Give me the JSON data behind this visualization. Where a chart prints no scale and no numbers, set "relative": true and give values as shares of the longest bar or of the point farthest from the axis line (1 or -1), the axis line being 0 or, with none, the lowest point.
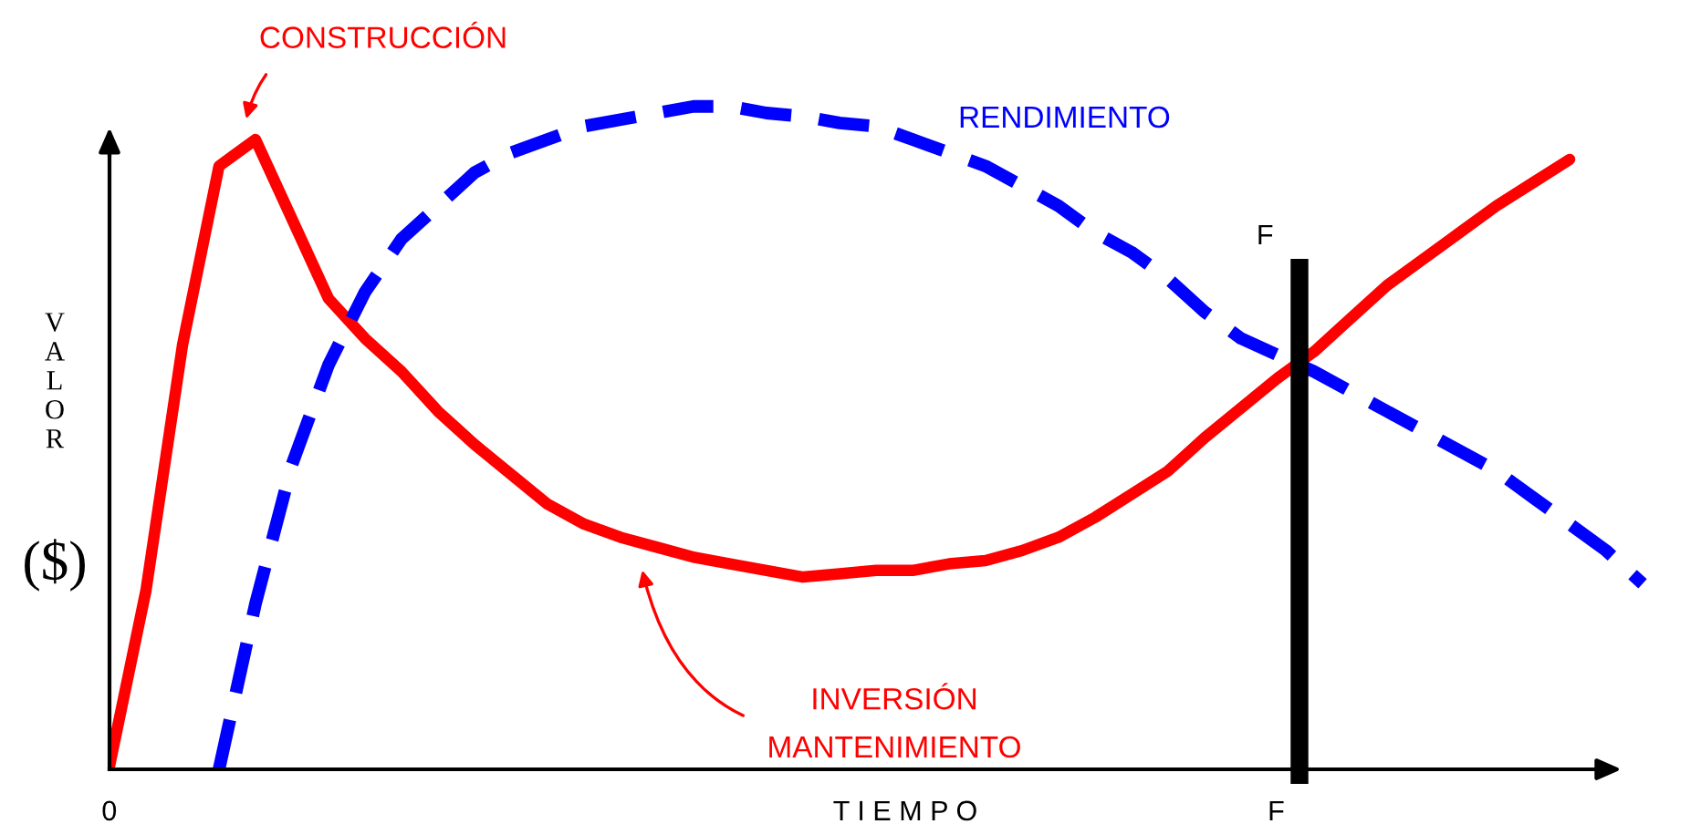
{
  "chart_data": {
    "type": "line",
    "relative": true,
    "xlabel": "T I E M P O",
    "ylabel": "VALOR ($)",
    "categories": [
      null,
      null,
      null,
      null,
      null,
      null,
      null,
      null,
      null,
      null,
      null,
      null,
      null,
      null,
      null,
      null,
      null,
      null,
      null,
      null,
      null,
      null,
      null,
      null,
      null,
      null,
      null,
      null,
      null,
      null,
      null,
      null,
      null,
      null,
      null,
      null,
      null,
      null,
      null,
      null,
      null,
      null,
      null
    ],
    "series": [
      {
        "color": "#ff0000",
        "line_style": "solid",
        "values": [
          0.005,
          0.27,
          0.64,
          0.91,
          0.95,
          0.83,
          0.71,
          0.65,
          0.6,
          0.54,
          0.49,
          0.445,
          0.4,
          0.37,
          0.35,
          0.335,
          0.32,
          0.31,
          0.3,
          0.29,
          0.295,
          0.3,
          0.3,
          0.31,
          0.315,
          0.33,
          0.35,
          0.38,
          0.415,
          0.45,
          0.5,
          0.545,
          0.59,
          0.63,
          0.68,
          0.73,
          0.77,
          0.81,
          0.85,
          0.885,
          0.92,
          null,
          null
        ]
      },
      {
        "name": "RENDIMIENTO",
        "color": "#0000ff",
        "line_style": "dashed",
        "values": [
          null,
          null,
          null,
          0,
          0.25,
          0.46,
          0.61,
          0.72,
          0.8,
          0.85,
          0.9,
          0.93,
          0.95,
          0.97,
          0.98,
          0.99,
          1.0,
          1.0,
          0.99,
          0.985,
          0.975,
          0.97,
          0.95,
          0.93,
          0.91,
          0.88,
          0.85,
          0.81,
          0.78,
          0.74,
          0.69,
          0.65,
          0.625,
          0.6,
          0.57,
          0.54,
          0.51,
          0.48,
          0.45,
          0.41,
          0.37,
          0.33,
          0.28
        ]
      }
    ],
    "annotations": [
      "CONSTRUCCIÓN",
      "INVERSIÓN\nMANTENIMIENTO",
      "F",
      "F",
      "0"
    ]
  }
}
